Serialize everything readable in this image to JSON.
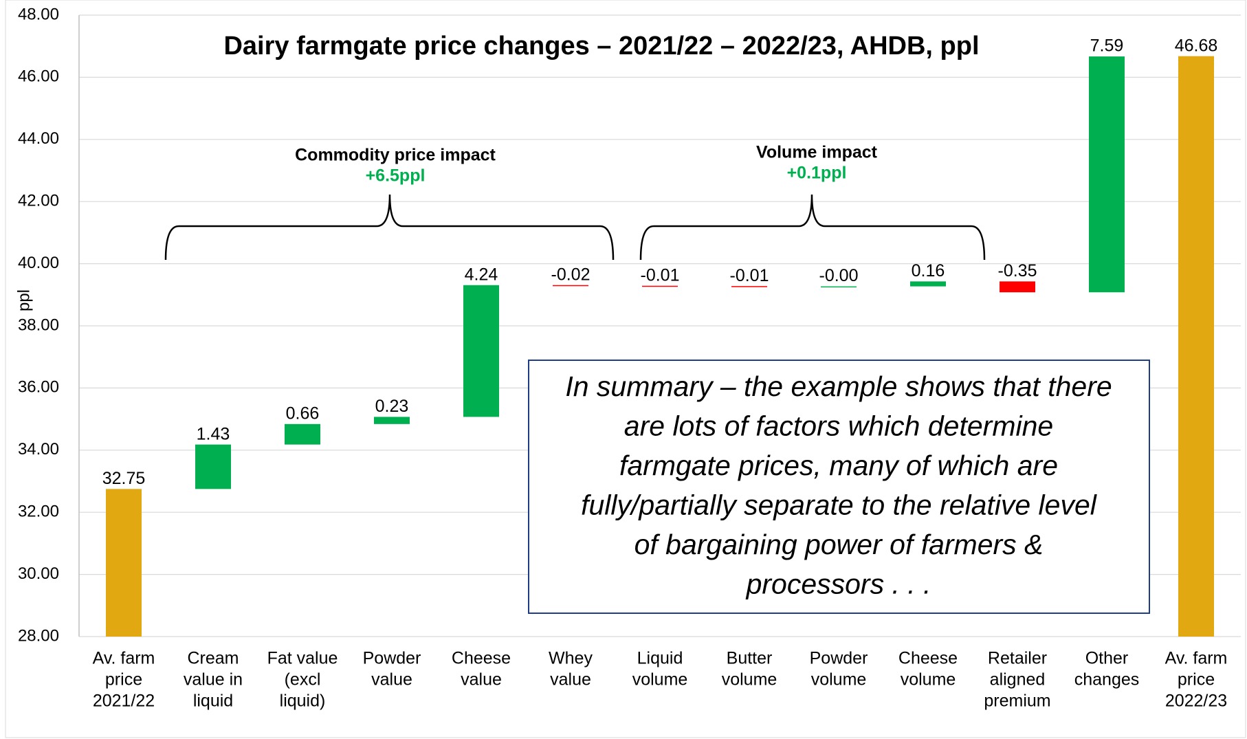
{
  "chart_data": {
    "type": "waterfall",
    "title": "Dairy farmgate price changes – 2021/22 – 2022/23, AHDB, ppl",
    "y_label": "ppl",
    "categories": [
      [
        "Av. farm",
        "price",
        "2021/22"
      ],
      [
        "Cream",
        "value in",
        "liquid"
      ],
      [
        "Fat value",
        "(excl",
        "liquid)"
      ],
      [
        "Powder",
        "value"
      ],
      [
        "Cheese",
        "value"
      ],
      [
        "Whey",
        "value"
      ],
      [
        "Liquid",
        "volume"
      ],
      [
        "Butter",
        "volume"
      ],
      [
        "Powder",
        "volume"
      ],
      [
        "Cheese",
        "volume"
      ],
      [
        "Retailer",
        "aligned",
        "premium"
      ],
      [
        "Other",
        "changes"
      ],
      [
        "Av. farm",
        "price",
        "2022/23"
      ]
    ],
    "values": [
      32.75,
      1.43,
      0.66,
      0.23,
      4.24,
      -0.02,
      -0.01,
      -0.01,
      0,
      0.16,
      -0.35,
      7.59,
      46.68
    ],
    "value_labels": [
      "32.75",
      "1.43",
      "0.66",
      "0.23",
      "4.24",
      "-0.02",
      "-0.01",
      "-0.01",
      "-0.00",
      "0.16",
      "-0.35",
      "7.59",
      "46.68"
    ],
    "totals": [
      0,
      12
    ],
    "total_color": "#e1a812",
    "increase_color": "#00b050",
    "decrease_color": "#ff0000",
    "ylim": [
      28,
      48
    ],
    "yticks": [
      {
        "value": 28,
        "label": "28.00"
      },
      {
        "value": 30,
        "label": "30.00"
      },
      {
        "value": 32,
        "label": "32.00"
      },
      {
        "value": 34,
        "label": "34.00"
      },
      {
        "value": 36,
        "label": "36.00"
      },
      {
        "value": 38,
        "label": "38.00"
      },
      {
        "value": 40,
        "label": "40.00"
      },
      {
        "value": 42,
        "label": "42.00"
      },
      {
        "value": 44,
        "label": "44.00"
      },
      {
        "value": 46,
        "label": "46.00"
      },
      {
        "value": 48,
        "label": "48.00"
      }
    ],
    "grid": true,
    "annotations": [
      {
        "text": "Commodity price impact",
        "value_text": "+6.5ppl"
      },
      {
        "text": "Volume impact",
        "value_text": "+0.1ppl"
      }
    ],
    "summary": [
      "In summary –  the example shows that there",
      "are lots of factors which determine",
      "farmgate prices, many of which are",
      "fully/partially separate to the relative level",
      "of bargaining power of farmers &",
      "processors . . ."
    ]
  }
}
